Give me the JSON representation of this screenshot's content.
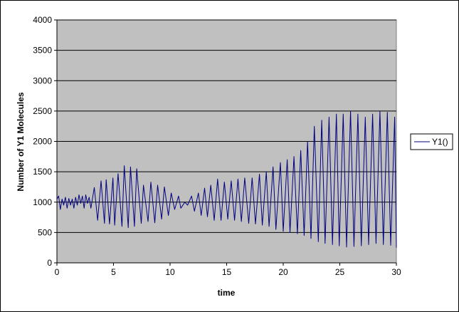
{
  "chart_data": {
    "type": "line",
    "title": "",
    "xlabel": "time",
    "ylabel": "Number of Y1 Molecules",
    "xlim": [
      0,
      30
    ],
    "ylim": [
      0,
      4000
    ],
    "x_ticks": [
      0,
      5,
      10,
      15,
      20,
      25,
      30
    ],
    "y_ticks": [
      0,
      500,
      1000,
      1500,
      2000,
      2500,
      3000,
      3500,
      4000
    ],
    "grid": "horizontal",
    "legend_position": "right",
    "plot_background": "#c0c0c0",
    "series": [
      {
        "name": "Y1()",
        "color": "#000080",
        "x": [
          0,
          0.15,
          0.3,
          0.45,
          0.6,
          0.75,
          0.9,
          1.05,
          1.2,
          1.35,
          1.5,
          1.65,
          1.8,
          1.95,
          2.1,
          2.25,
          2.4,
          2.55,
          2.7,
          2.85,
          3,
          3.3,
          3.6,
          3.9,
          4.2,
          4.35,
          4.65,
          4.95,
          5.1,
          5.4,
          5.75,
          5.95,
          6.3,
          6.5,
          6.85,
          7.05,
          7.45,
          7.65,
          8.05,
          8.3,
          8.65,
          8.9,
          9.25,
          9.5,
          9.85,
          10.1,
          10.4,
          10.75,
          10.95,
          11.3,
          11.55,
          11.9,
          12.15,
          12.5,
          12.75,
          13.05,
          13.3,
          13.6,
          13.9,
          14.2,
          14.5,
          14.8,
          15.1,
          15.4,
          15.7,
          16,
          16.3,
          16.6,
          16.95,
          17.25,
          17.55,
          17.9,
          18.15,
          18.5,
          18.75,
          19.1,
          19.35,
          19.75,
          20,
          20.35,
          20.6,
          20.95,
          21.25,
          21.55,
          21.85,
          22.15,
          22.45,
          22.75,
          23.1,
          23.4,
          23.7,
          24.05,
          24.35,
          24.7,
          24.95,
          25.3,
          25.6,
          25.95,
          26.25,
          26.6,
          26.9,
          27.25,
          27.55,
          27.9,
          28.2,
          28.55,
          28.85,
          29.2,
          29.5,
          29.85,
          30
        ],
        "y": [
          1050,
          1100,
          880,
          1050,
          950,
          1080,
          900,
          1060,
          950,
          1050,
          900,
          1080,
          950,
          1120,
          980,
          1100,
          900,
          1120,
          980,
          1080,
          900,
          1240,
          700,
          1350,
          650,
          1370,
          640,
          1400,
          620,
          1470,
          600,
          1600,
          580,
          1580,
          600,
          1550,
          650,
          1280,
          680,
          1330,
          660,
          1280,
          720,
          1250,
          780,
          1150,
          880,
          1100,
          900,
          1000,
          950,
          1100,
          850,
          1150,
          780,
          1230,
          760,
          1280,
          700,
          1380,
          700,
          1330,
          720,
          1350,
          700,
          1380,
          680,
          1400,
          650,
          1400,
          640,
          1460,
          620,
          1500,
          600,
          1580,
          550,
          1650,
          520,
          1700,
          500,
          1750,
          480,
          1850,
          450,
          2000,
          400,
          2250,
          350,
          2350,
          320,
          2400,
          300,
          2450,
          280,
          2450,
          260,
          2500,
          270,
          2450,
          280,
          2400,
          300,
          2450,
          320,
          2500,
          300,
          2480,
          290,
          2400,
          250
        ]
      }
    ]
  }
}
